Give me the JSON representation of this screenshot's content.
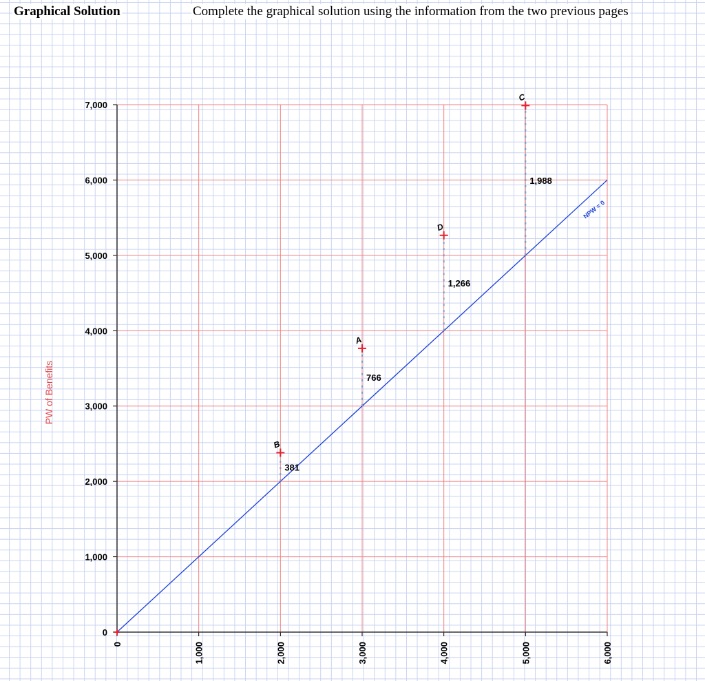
{
  "header": {
    "title": "Graphical Solution",
    "instructions": "Complete the graphical solution using the information from the two previous pages"
  },
  "colors": {
    "grid_major": "#f08080",
    "line": "#1a3fd6",
    "marker": "#e8202a",
    "gap": "#7a9ec4",
    "ylabel": "#e0454a"
  },
  "chart_data": {
    "type": "line",
    "title": "",
    "xlabel": "",
    "ylabel": "PW of Benefits",
    "xlim": [
      0,
      6000
    ],
    "ylim": [
      0,
      7000
    ],
    "x_ticks": [
      "0",
      "1,000",
      "2,000",
      "3,000",
      "4,000",
      "5,000",
      "6,000"
    ],
    "y_ticks": [
      "0",
      "1,000",
      "2,000",
      "3,000",
      "4,000",
      "5,000",
      "6,000",
      "7,000"
    ],
    "grid": true,
    "series": [
      {
        "name": "NPW = 0",
        "x": [
          0,
          6000
        ],
        "y": [
          0,
          6000
        ]
      }
    ],
    "points": [
      {
        "label": "B",
        "x": 2000,
        "y": 2381,
        "npw": "381"
      },
      {
        "label": "A",
        "x": 3000,
        "y": 3766,
        "npw": "766"
      },
      {
        "label": "D",
        "x": 4000,
        "y": 5266,
        "npw": "1,266"
      },
      {
        "label": "C",
        "x": 5000,
        "y": 6988,
        "npw": "1,988"
      }
    ]
  }
}
